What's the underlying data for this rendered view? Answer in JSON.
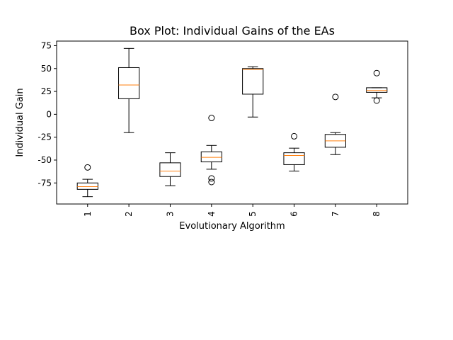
{
  "chart_data": {
    "type": "box",
    "title": "Box Plot: Individual Gains of the EAs",
    "xlabel": "Evolutionary Algorithm",
    "ylabel": "Individual Gain",
    "ylim": [
      -98,
      80
    ],
    "yticks": [
      -75,
      -50,
      -25,
      0,
      25,
      50,
      75
    ],
    "categories": [
      "1",
      "2",
      "3",
      "4",
      "5",
      "6",
      "7",
      "8"
    ],
    "boxes": [
      {
        "label": "1",
        "whislo": -90,
        "q1": -82,
        "med": -79,
        "q3": -75,
        "whishi": -71,
        "fliers": [
          -58
        ]
      },
      {
        "label": "2",
        "whislo": -20,
        "q1": 17,
        "med": 32,
        "q3": 51,
        "whishi": 72,
        "fliers": []
      },
      {
        "label": "3",
        "whislo": -78,
        "q1": -68,
        "med": -62,
        "q3": -53,
        "whishi": -42,
        "fliers": []
      },
      {
        "label": "4",
        "whislo": -60,
        "q1": -52,
        "med": -47,
        "q3": -41,
        "whishi": -34,
        "fliers": [
          -4,
          -70,
          -74
        ]
      },
      {
        "label": "5",
        "whislo": -3,
        "q1": 22,
        "med": 49,
        "q3": 50,
        "whishi": 52,
        "fliers": []
      },
      {
        "label": "6",
        "whislo": -62,
        "q1": -55,
        "med": -45,
        "q3": -42,
        "whishi": -37,
        "fliers": [
          -24
        ]
      },
      {
        "label": "7",
        "whislo": -44,
        "q1": -36,
        "med": -29,
        "q3": -22,
        "whishi": -20,
        "fliers": [
          19
        ]
      },
      {
        "label": "8",
        "whislo": 18,
        "q1": 24,
        "med": 26,
        "q3": 29,
        "whishi": 29,
        "fliers": [
          45,
          15
        ]
      }
    ],
    "colors": {
      "box": "#000000",
      "median": "#ff7f0e",
      "flier_edge": "#000000"
    },
    "tick_label_rotation_x": 90,
    "grid": false,
    "legend": "none"
  }
}
